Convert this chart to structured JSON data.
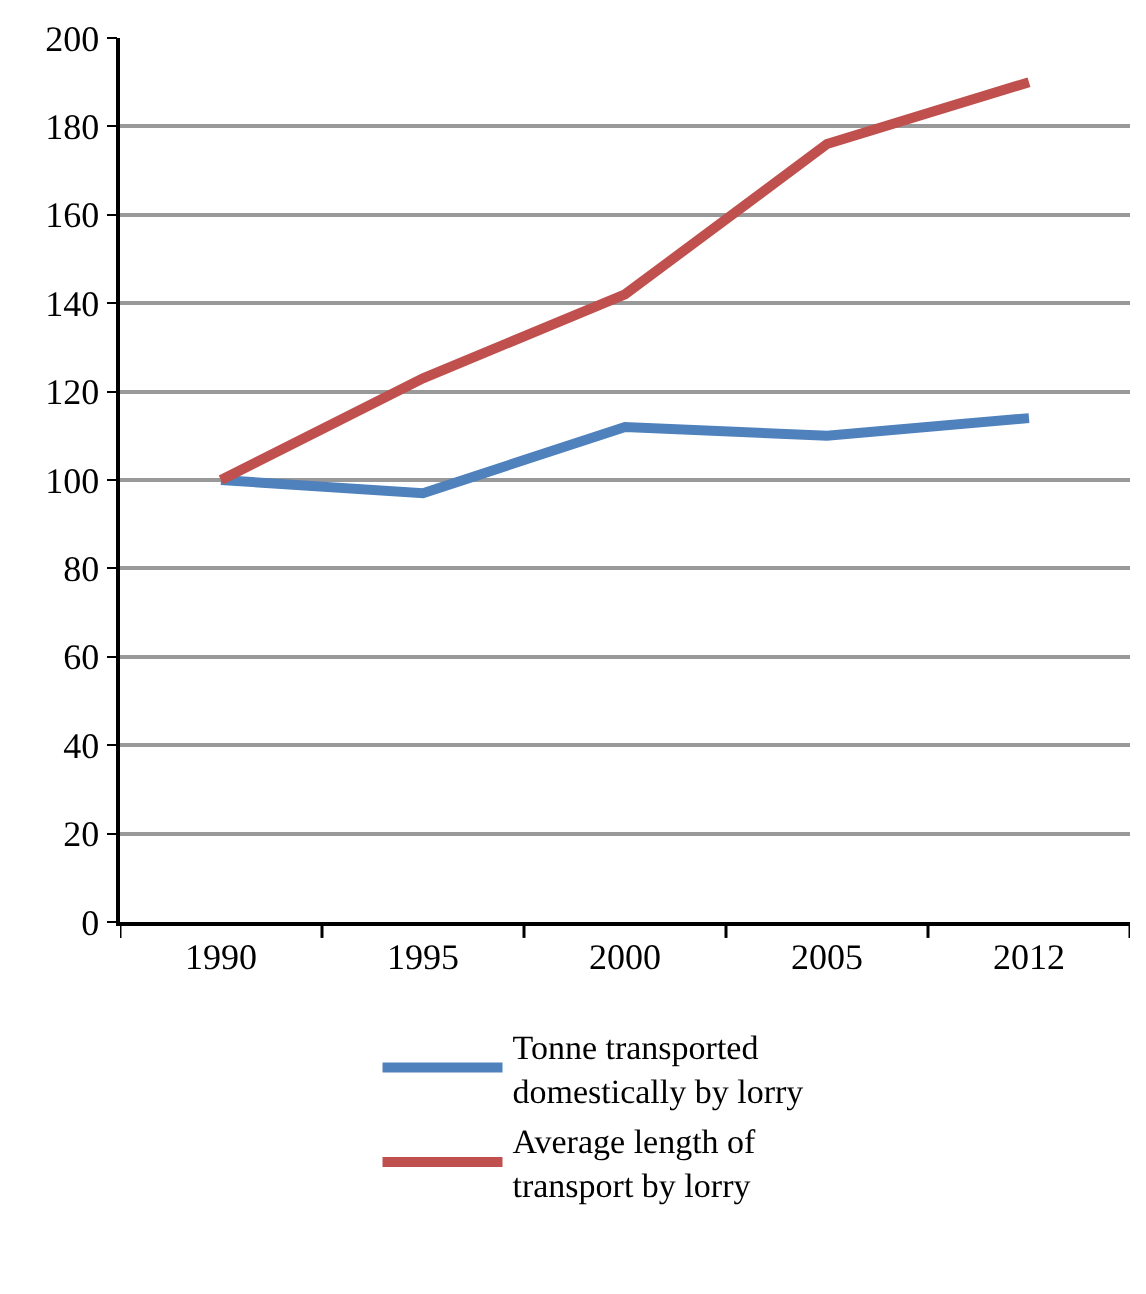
{
  "chart_data": {
    "type": "line",
    "categories": [
      "1990",
      "1995",
      "2000",
      "2005",
      "2012"
    ],
    "series": [
      {
        "name": "Tonne transported domestically by lorry",
        "color": "#4f81bd",
        "values": [
          100,
          97,
          112,
          110,
          114
        ]
      },
      {
        "name": "Average length of transport by lorry",
        "color": "#c0504d",
        "values": [
          100,
          123,
          142,
          176,
          190
        ]
      }
    ],
    "ylim": [
      0,
      200
    ],
    "yticks": [
      0,
      20,
      40,
      60,
      80,
      100,
      120,
      140,
      160,
      180,
      200
    ],
    "grid": "y",
    "legend": "bottom",
    "marker": "none",
    "line_style": "solid"
  }
}
